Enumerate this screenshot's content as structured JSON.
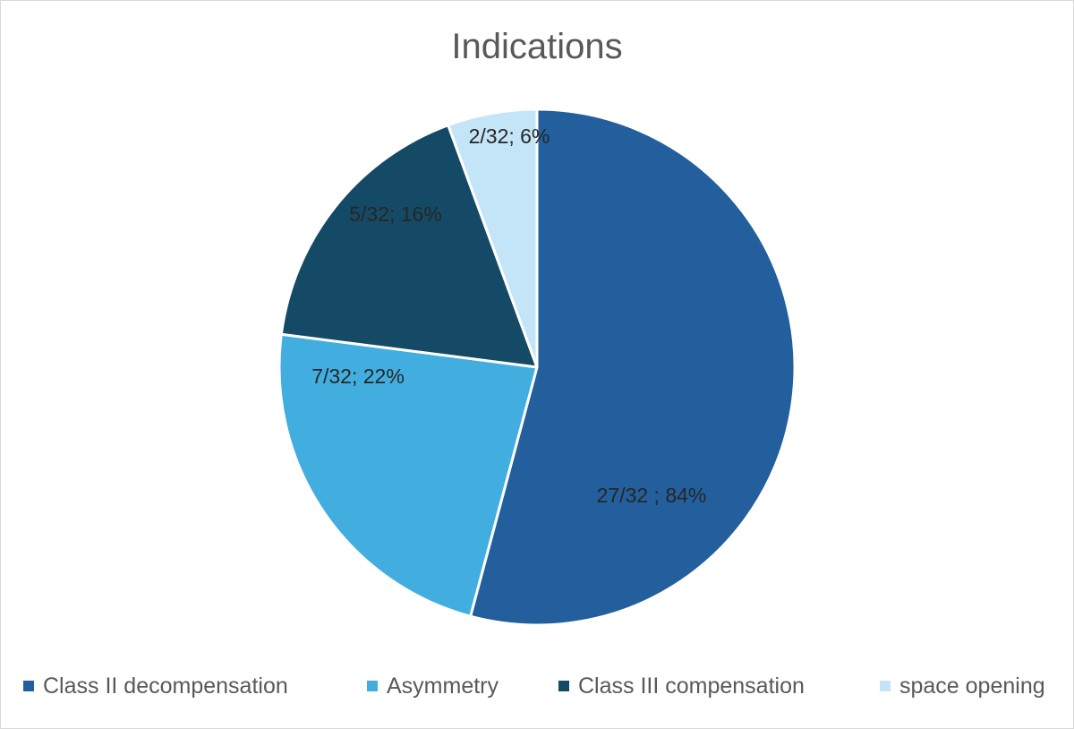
{
  "chart_data": {
    "type": "pie",
    "title": "Indications",
    "slices": [
      {
        "name": "Class II decompensation",
        "label": "27/32 ; 84%",
        "value": 185.6,
        "color": "#225f9c"
      },
      {
        "name": "Asymmetry",
        "label": "7/32; 22%",
        "value": 78.4,
        "color": "#42aee0"
      },
      {
        "name": "Class III compensation",
        "label": "5/32; 16%",
        "value": 59.5,
        "color": "#154a66"
      },
      {
        "name": "space opening",
        "label": "2/32; 6%",
        "value": 19.2,
        "color": "#c4e5f7"
      }
    ],
    "legend_position": "bottom"
  }
}
